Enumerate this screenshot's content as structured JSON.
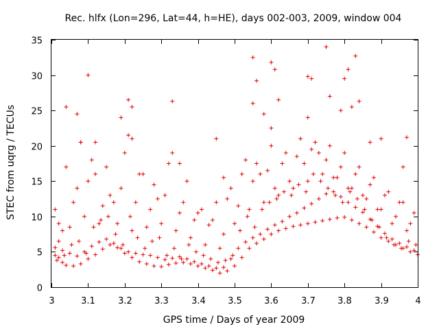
{
  "chart_data": {
    "type": "scatter",
    "title": "Rec. hlfx (Lon=296, Lat=44, h=HE), days 002-003, 2009, window 004",
    "xlabel": "GPS time / Days of year 2009",
    "ylabel": "STEC from uqrg / TECUs",
    "xlim": [
      3,
      4
    ],
    "ylim": [
      0,
      35
    ],
    "xticks": [
      "3",
      "3.1",
      "3.2",
      "3.3",
      "3.4",
      "3.5",
      "3.6",
      "3.7",
      "3.8",
      "3.9",
      "4"
    ],
    "yticks": [
      "0",
      "5",
      "10",
      "15",
      "20",
      "25",
      "30",
      "35"
    ],
    "grid": false,
    "marker": "+",
    "color": "#e00000",
    "series": [
      {
        "name": "STEC",
        "x": [
          3.01,
          3.02,
          3.03,
          3.04,
          3.06,
          3.08,
          3.1,
          3.12,
          3.14,
          3.16,
          3.18,
          3.2,
          3.22,
          3.24,
          3.26,
          3.28,
          3.3,
          3.32,
          3.34,
          3.36,
          3.38,
          3.4,
          3.42,
          3.44,
          3.46,
          3.48,
          3.5,
          3.52,
          3.54,
          3.56,
          3.58,
          3.6,
          3.62,
          3.64,
          3.66,
          3.68,
          3.7,
          3.72,
          3.74,
          3.76,
          3.78,
          3.8,
          3.82,
          3.84,
          3.86,
          3.88,
          3.9,
          3.92,
          3.94,
          3.96,
          3.98,
          4.0,
          3.01,
          3.03,
          3.05,
          3.07,
          3.09,
          3.11,
          3.13,
          3.15,
          3.17,
          3.19,
          3.21,
          3.23,
          3.25,
          3.27,
          3.29,
          3.31,
          3.33,
          3.35,
          3.37,
          3.39,
          3.41,
          3.43,
          3.45,
          3.47,
          3.49,
          3.51,
          3.53,
          3.55,
          3.57,
          3.59,
          3.61,
          3.63,
          3.65,
          3.67,
          3.69,
          3.71,
          3.73,
          3.75,
          3.77,
          3.79,
          3.81,
          3.83,
          3.85,
          3.87,
          3.89,
          3.91,
          3.93,
          3.95,
          3.97,
          3.99,
          3.02,
          3.06,
          3.1,
          3.14,
          3.18,
          3.22,
          3.26,
          3.3,
          3.34,
          3.38,
          3.42,
          3.46,
          3.5,
          3.54,
          3.58,
          3.62,
          3.66,
          3.7,
          3.74,
          3.78,
          3.82,
          3.86,
          3.9,
          3.94,
          3.98,
          3.03,
          3.07,
          3.11,
          3.15,
          3.19,
          3.23,
          3.27,
          3.31,
          3.35,
          3.39,
          3.43,
          3.47,
          3.51,
          3.55,
          3.59,
          3.63,
          3.67,
          3.71,
          3.75,
          3.79,
          3.83,
          3.87,
          3.91,
          3.95,
          3.99,
          3.01,
          3.04,
          3.08,
          3.12,
          3.16,
          3.2,
          3.24,
          3.28,
          3.32,
          3.36,
          3.4,
          3.44,
          3.48,
          3.52,
          3.56,
          3.6,
          3.64,
          3.68,
          3.72,
          3.76,
          3.8,
          3.84,
          3.88,
          3.92,
          3.96,
          3.02,
          3.05,
          3.09,
          3.13,
          3.17,
          3.21,
          3.25,
          3.29,
          3.33,
          3.37,
          3.41,
          3.45,
          3.49,
          3.53,
          3.57,
          3.61,
          3.65,
          3.69,
          3.73,
          3.77,
          3.81,
          3.85,
          3.89,
          3.93,
          3.97,
          3.015,
          3.035,
          3.055,
          3.075,
          3.095,
          3.115,
          3.135,
          3.155,
          3.175,
          3.195,
          3.215,
          3.235,
          3.255,
          3.275,
          3.295,
          3.315,
          3.335,
          3.355,
          3.375,
          3.395,
          3.415,
          3.435,
          3.455,
          3.475,
          3.495,
          3.515,
          3.535,
          3.555,
          3.575,
          3.595,
          3.615,
          3.635,
          3.655,
          3.675,
          3.695,
          3.715,
          3.735,
          3.755,
          3.775,
          3.795,
          3.815,
          3.835,
          3.855,
          3.875,
          3.895,
          3.915,
          3.935,
          3.955,
          3.975,
          3.995,
          3.04,
          3.07,
          3.1,
          3.19,
          3.22,
          3.33,
          3.45,
          3.55,
          3.56,
          3.6,
          3.61,
          3.7,
          3.75,
          3.8,
          3.81,
          3.83,
          3.84,
          3.97,
          3.08,
          3.12,
          3.21,
          3.22,
          3.35,
          3.47,
          3.55,
          3.58,
          3.6,
          3.62,
          3.7,
          3.71,
          3.76,
          3.79,
          3.82,
          3.87,
          3.9,
          3.96
        ],
        "y": [
          4.5,
          4.2,
          3.5,
          3.1,
          3.0,
          3.3,
          4.0,
          4.6,
          5.4,
          6.0,
          5.6,
          4.8,
          4.2,
          3.6,
          3.3,
          3.0,
          2.9,
          3.2,
          3.4,
          3.5,
          3.3,
          3.0,
          2.7,
          2.4,
          2.0,
          2.3,
          3.0,
          4.2,
          5.5,
          6.2,
          6.8,
          7.5,
          8.0,
          8.3,
          8.6,
          8.8,
          9.0,
          9.2,
          9.4,
          9.6,
          9.8,
          9.9,
          9.5,
          9.0,
          8.5,
          7.8,
          7.0,
          6.5,
          6.0,
          5.5,
          5.0,
          4.6,
          5.6,
          5.2,
          4.8,
          4.4,
          5.0,
          5.8,
          6.4,
          6.8,
          6.2,
          5.5,
          5.0,
          4.8,
          4.6,
          4.5,
          4.2,
          3.9,
          4.1,
          4.3,
          4.0,
          3.6,
          3.3,
          3.0,
          2.7,
          2.8,
          4.0,
          5.5,
          6.4,
          7.0,
          7.5,
          8.2,
          8.8,
          9.3,
          10.0,
          10.5,
          11.2,
          11.8,
          12.5,
          13.2,
          13.5,
          12.8,
          12.0,
          11.3,
          10.6,
          9.6,
          8.6,
          7.6,
          6.8,
          6.2,
          5.7,
          5.2,
          9.0,
          12.0,
          15.0,
          11.5,
          9.0,
          8.0,
          8.5,
          9.0,
          8.0,
          7.0,
          6.0,
          5.5,
          9.0,
          11.0,
          12.0,
          13.0,
          14.0,
          15.0,
          16.0,
          15.5,
          14.0,
          12.5,
          11.0,
          10.0,
          9.0,
          8.0,
          14.0,
          18.0,
          17.0,
          14.0,
          12.0,
          11.0,
          13.0,
          10.5,
          9.5,
          8.8,
          7.5,
          11.5,
          15.0,
          16.5,
          17.5,
          18.5,
          19.5,
          18.0,
          17.0,
          16.0,
          14.5,
          13.0,
          12.0,
          10.5,
          11.0,
          17.0,
          20.5,
          16.0,
          13.0,
          19.0,
          16.0,
          14.5,
          17.5,
          12.0,
          10.5,
          9.5,
          12.5,
          16.0,
          17.5,
          20.0,
          19.0,
          21.0,
          20.5,
          20.0,
          19.0,
          17.0,
          15.5,
          13.5,
          12.0,
          6.5,
          8.5,
          10.0,
          9.0,
          12.0,
          21.5,
          16.0,
          12.5,
          19.0,
          15.0,
          11.0,
          12.0,
          14.0,
          18.0,
          16.0,
          14.0,
          15.0,
          17.5,
          19.0,
          15.5,
          14.0,
          13.0,
          11.0,
          9.0,
          8.0,
          3.8,
          4.5,
          6.0,
          6.5,
          4.8,
          8.5,
          9.5,
          10.0,
          7.5,
          6.0,
          10.0,
          7.0,
          5.5,
          6.5,
          7.0,
          4.5,
          5.5,
          4.0,
          6.0,
          5.0,
          4.5,
          4.0,
          3.5,
          3.8,
          4.5,
          8.0,
          10.0,
          8.5,
          11.0,
          12.0,
          12.5,
          13.5,
          13.0,
          14.5,
          13.5,
          16.0,
          15.0,
          14.0,
          13.0,
          12.0,
          13.5,
          12.5,
          11.0,
          9.5,
          8.5,
          7.0,
          6.0,
          5.5,
          6.5,
          6.0,
          25.5,
          24.5,
          30.0,
          24.0,
          25.5,
          26.3,
          21.0,
          32.5,
          29.2,
          31.8,
          30.8,
          29.8,
          34.0,
          29.5,
          30.8,
          32.7,
          26.3,
          21.2,
          20.5,
          20.5,
          26.5,
          21.0,
          17.5,
          15.5,
          26.0,
          24.5,
          22.5,
          26.5,
          24.0,
          29.5,
          27.0,
          25.0,
          25.5,
          20.5,
          21.0,
          17.0
        ]
      }
    ]
  }
}
